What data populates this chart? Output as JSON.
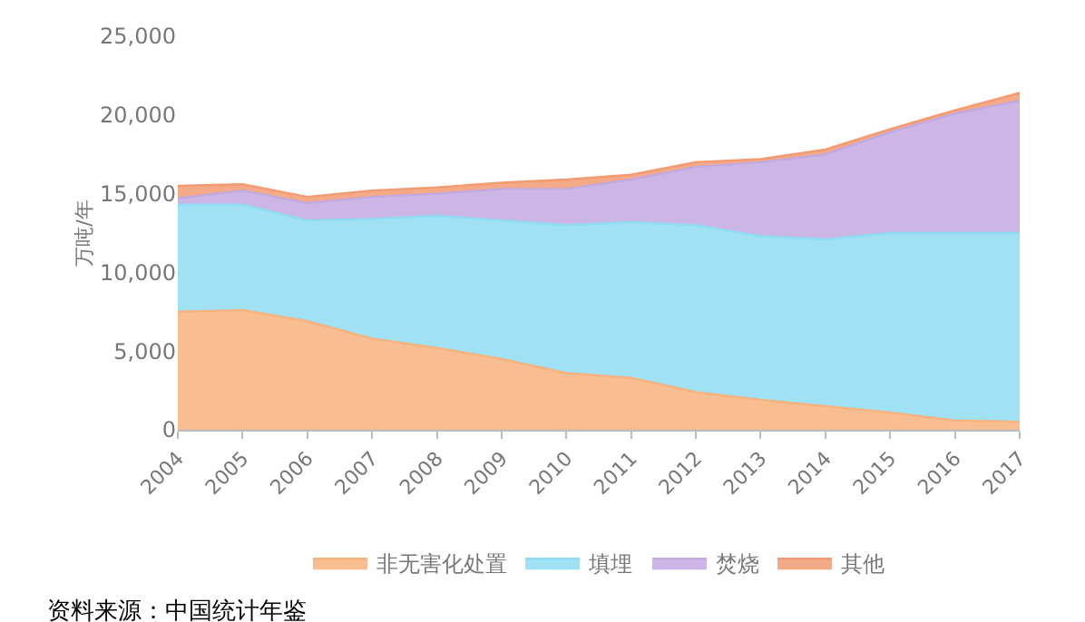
{
  "chart_data": {
    "type": "area",
    "stacked": true,
    "ylabel": "万吨/年",
    "categories": [
      "2004",
      "2005",
      "2006",
      "2007",
      "2008",
      "2009",
      "2010",
      "2011",
      "2012",
      "2013",
      "2014",
      "2015",
      "2016",
      "2017"
    ],
    "series": [
      {
        "name": "非无害化处置",
        "color": "#f7b27e",
        "values": [
          7500,
          7600,
          6900,
          5800,
          5200,
          4500,
          3600,
          3300,
          2400,
          1900,
          1500,
          1100,
          600,
          500
        ]
      },
      {
        "name": "填埋",
        "color": "#8fdcf2",
        "values": [
          6800,
          6700,
          6400,
          7600,
          8400,
          8800,
          9400,
          9900,
          10600,
          10400,
          10600,
          11400,
          11900,
          12000
        ]
      },
      {
        "name": "焚烧",
        "color": "#c2a9e0",
        "values": [
          400,
          900,
          1100,
          1400,
          1400,
          2000,
          2300,
          2700,
          3700,
          4700,
          5400,
          6400,
          7600,
          8400
        ]
      },
      {
        "name": "其他",
        "color": "#f29a72",
        "values": [
          800,
          400,
          400,
          400,
          400,
          400,
          600,
          300,
          300,
          200,
          300,
          200,
          200,
          500
        ]
      }
    ],
    "ylim": [
      0,
      25000
    ],
    "yticks": [
      {
        "value": 0,
        "label": "0"
      },
      {
        "value": 5000,
        "label": "5,000"
      },
      {
        "value": 10000,
        "label": "10,000"
      },
      {
        "value": 15000,
        "label": "15,000"
      },
      {
        "value": 20000,
        "label": "20,000"
      },
      {
        "value": 25000,
        "label": "25,000"
      }
    ],
    "grid": false,
    "legend": "bottom",
    "annotations": [
      "资料来源：中国统计年鉴"
    ]
  }
}
